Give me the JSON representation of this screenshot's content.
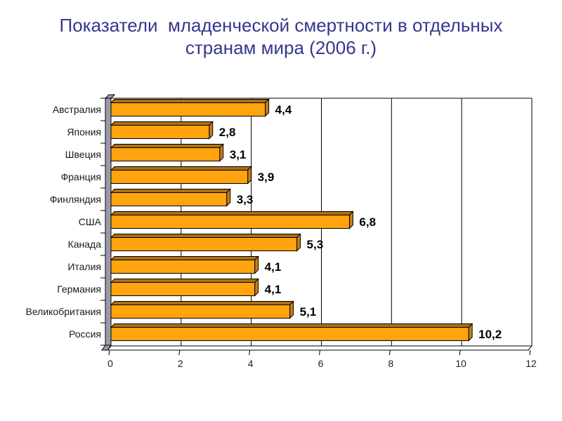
{
  "slide": {
    "title": "Показатели  младенческой смертности в отдельных\nстранам мира (2006 г.)",
    "title_color": "#363690",
    "background": "#ffffff"
  },
  "chart_data": {
    "type": "bar",
    "orientation": "horizontal",
    "title": "Показатели младенческой смертности в отдельных странам мира (2006 г.)",
    "categories": [
      "Австралия",
      "Япония",
      "Швеция",
      "Франция",
      "Финляндия",
      "США",
      "Канада",
      "Италия",
      "Германия",
      "Великобритания",
      "Россия"
    ],
    "values": [
      4.4,
      2.8,
      3.1,
      3.9,
      3.3,
      6.8,
      5.3,
      4.1,
      4.1,
      5.1,
      10.2
    ],
    "value_labels": [
      "4,4",
      "2,8",
      "3,1",
      "3,9",
      "3,3",
      "6,8",
      "5,3",
      "4,1",
      "4,1",
      "5,1",
      "10,2"
    ],
    "x_ticks": [
      0,
      2,
      4,
      6,
      8,
      10,
      12
    ],
    "x_tick_labels": [
      "0",
      "2",
      "4",
      "6",
      "8",
      "10",
      "12"
    ],
    "xlim": [
      0,
      12
    ],
    "grid": true,
    "legend": false,
    "xlabel": "",
    "ylabel": "",
    "colors": {
      "bar_front": "#FFA30F",
      "bar_top": "#AD7014",
      "bar_end": "#C67E1B",
      "bar_outline": "#000000",
      "wall": "#9A9AAD",
      "floor": "#FFFFFF",
      "grid_line": "#000000",
      "category_label": "#1A1A1A",
      "value_label": "#000000",
      "axis_label": "#222222"
    }
  }
}
